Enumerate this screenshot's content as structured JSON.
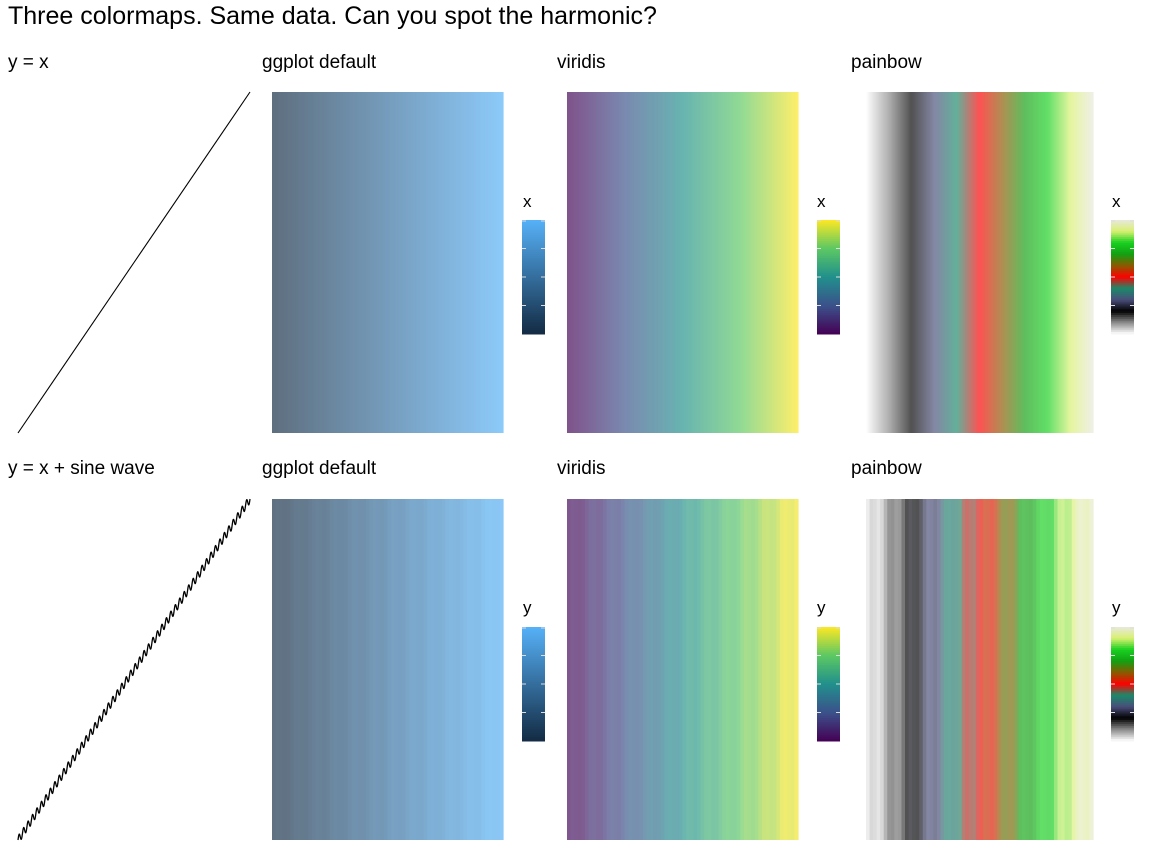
{
  "title": "Three colormaps. Same data. Can you spot the harmonic?",
  "rows": [
    {
      "line_label": "y = x",
      "fill_variable": "x",
      "panels": [
        {
          "label": "ggplot default",
          "colormap": "ggplot default"
        },
        {
          "label": "viridis",
          "colormap": "viridis"
        },
        {
          "label": "painbow",
          "colormap": "painbow"
        }
      ]
    },
    {
      "line_label": "y = x + sine wave",
      "fill_variable": "y",
      "panels": [
        {
          "label": "ggplot default",
          "colormap": "ggplot default"
        },
        {
          "label": "viridis",
          "colormap": "viridis"
        },
        {
          "label": "painbow",
          "colormap": "painbow"
        }
      ]
    }
  ],
  "chart_data": [
    {
      "type": "line",
      "title": "y = x",
      "series": [
        {
          "expression": "y = x"
        }
      ],
      "grid": false,
      "axes": false
    },
    {
      "type": "heatmap",
      "title": "ggplot default",
      "fill": "x",
      "colormap": [
        "#132B43",
        "#56B1F7"
      ],
      "legend": "right"
    },
    {
      "type": "heatmap",
      "title": "viridis",
      "fill": "x",
      "colormap": [
        "#440154",
        "#3B528B",
        "#21908C",
        "#5DC863",
        "#FDE725"
      ],
      "legend": "right"
    },
    {
      "type": "heatmap",
      "title": "painbow",
      "fill": "x",
      "colormap": [
        "#FFFFFF",
        "#8A8A8A",
        "#000000",
        "#4A4E7A",
        "#1A8A6A",
        "#FF0000",
        "#8A5A00",
        "#12A012",
        "#18D020",
        "#D8F070",
        "#E8E8DC"
      ],
      "legend": "right"
    },
    {
      "type": "line",
      "title": "y = x + sine wave",
      "series": [
        {
          "expression": "y = x + sine wave"
        }
      ],
      "grid": false,
      "axes": false
    },
    {
      "type": "heatmap",
      "title": "ggplot default",
      "fill": "y",
      "colormap": [
        "#132B43",
        "#56B1F7"
      ],
      "legend": "right"
    },
    {
      "type": "heatmap",
      "title": "viridis",
      "fill": "y",
      "colormap": [
        "#440154",
        "#3B528B",
        "#21908C",
        "#5DC863",
        "#FDE725"
      ],
      "legend": "right"
    },
    {
      "type": "heatmap",
      "title": "painbow",
      "fill": "y",
      "colormap": [
        "#FFFFFF",
        "#8A8A8A",
        "#000000",
        "#4A4E7A",
        "#1A8A6A",
        "#FF0000",
        "#8A5A00",
        "#12A012",
        "#18D020",
        "#D8F070",
        "#E8E8DC"
      ],
      "legend": "right"
    }
  ]
}
